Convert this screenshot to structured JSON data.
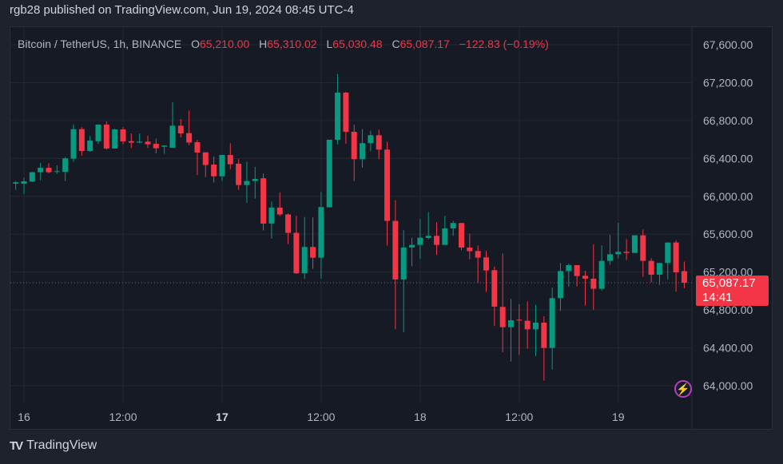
{
  "published": "rgb28 published on TradingView.com, Jun 19, 2024 08:45 UTC-4",
  "legend": {
    "symbol": "Bitcoin / TetherUS, 1h, BINANCE",
    "o_label": "O",
    "o": "65,210.00",
    "h_label": "H",
    "h": "65,310.02",
    "l_label": "L",
    "l": "65,030.48",
    "c_label": "C",
    "c": "65,087.17",
    "change": "−122.83 (−0.19%)"
  },
  "last_price": {
    "price": "65,087.17",
    "countdown": "14:41"
  },
  "logo_text": "TradingView",
  "icons": {
    "alert": "lightning-bolt-icon",
    "logo": "tradingview-logo-icon"
  },
  "colors": {
    "up": "#089981",
    "down": "#f23645",
    "background": "#161a25",
    "frame": "#1e222d",
    "grid": "#242833",
    "alert": "#b23fc8"
  },
  "chart_data": {
    "type": "candlestick",
    "interval": "1h",
    "first_candle": "2024-06-15 23:00",
    "last_close": 65087.17,
    "ylim": [
      63900,
      67750
    ],
    "y_ticks": [
      "67,600.00",
      "67,200.00",
      "66,800.00",
      "66,400.00",
      "66,000.00",
      "65,600.00",
      "65,200.00",
      "64,800.00",
      "64,400.00",
      "64,000.00"
    ],
    "y_tick_values": [
      67600,
      67200,
      66800,
      66400,
      66000,
      65600,
      65200,
      64800,
      64400,
      64000
    ],
    "x_ticks": [
      {
        "label": "16",
        "index": 1,
        "bold": false
      },
      {
        "label": "12:00",
        "index": 13,
        "bold": false
      },
      {
        "label": "17",
        "index": 25,
        "bold": true
      },
      {
        "label": "12:00",
        "index": 37,
        "bold": false
      },
      {
        "label": "18",
        "index": 49,
        "bold": false
      },
      {
        "label": "12:00",
        "index": 61,
        "bold": false
      },
      {
        "label": "19",
        "index": 73,
        "bold": false
      }
    ],
    "grid": true,
    "ohlc": [
      [
        66133,
        66161,
        66068,
        66147
      ],
      [
        66133,
        66197,
        66026,
        66158
      ],
      [
        66155,
        66257,
        66150,
        66254
      ],
      [
        66254,
        66352,
        66169,
        66301
      ],
      [
        66301,
        66349,
        66242,
        66254
      ],
      [
        66257,
        66327,
        66237,
        66265
      ],
      [
        66257,
        66414,
        66161,
        66400
      ],
      [
        66397,
        66759,
        66366,
        66709
      ],
      [
        66709,
        66731,
        66428,
        66478
      ],
      [
        66478,
        66636,
        66470,
        66588
      ],
      [
        66582,
        66757,
        66554,
        66757
      ],
      [
        66757,
        66790,
        66492,
        66504
      ],
      [
        66504,
        66714,
        66504,
        66706
      ],
      [
        66706,
        66731,
        66549,
        66580
      ],
      [
        66582,
        66664,
        66509,
        66566
      ],
      [
        66566,
        66664,
        66566,
        66577
      ],
      [
        66577,
        66641,
        66509,
        66549
      ],
      [
        66554,
        66610,
        66453,
        66507
      ],
      [
        66523,
        66540,
        66448,
        66535
      ],
      [
        66512,
        66990,
        66512,
        66745
      ],
      [
        66745,
        66816,
        66622,
        66664
      ],
      [
        66667,
        66905,
        66540,
        66568
      ],
      [
        66571,
        66596,
        66225,
        66462
      ],
      [
        66464,
        66464,
        66203,
        66330
      ],
      [
        66335,
        66419,
        66147,
        66211
      ],
      [
        66211,
        66436,
        66161,
        66436
      ],
      [
        66436,
        66560,
        66287,
        66338
      ],
      [
        66344,
        66391,
        66068,
        66119
      ],
      [
        66119,
        66363,
        65930,
        66161
      ],
      [
        66161,
        66310,
        65975,
        66183
      ],
      [
        66190,
        66240,
        65640,
        65712
      ],
      [
        65712,
        65945,
        65552,
        65881
      ],
      [
        65881,
        66041,
        65791,
        65808
      ],
      [
        65808,
        65819,
        65496,
        65614
      ],
      [
        65614,
        65796,
        65181,
        65187
      ],
      [
        65187,
        65782,
        65128,
        65465
      ],
      [
        65465,
        65777,
        65234,
        65352
      ],
      [
        65352,
        66046,
        65130,
        65886
      ],
      [
        65884,
        66597,
        65884,
        66597
      ],
      [
        66597,
        67291,
        66547,
        67094
      ],
      [
        67094,
        67103,
        66555,
        66681
      ],
      [
        66681,
        66755,
        66162,
        66392
      ],
      [
        66392,
        66710,
        66302,
        66561
      ],
      [
        66561,
        66693,
        66476,
        66645
      ],
      [
        66645,
        66704,
        66392,
        66493
      ],
      [
        66493,
        66577,
        65479,
        65740
      ],
      [
        65740,
        65959,
        64596,
        65122
      ],
      [
        65122,
        65642,
        64565,
        65459
      ],
      [
        65459,
        65563,
        65262,
        65487
      ],
      [
        65487,
        65760,
        65338,
        65563
      ],
      [
        65560,
        65833,
        65546,
        65583
      ],
      [
        65583,
        65726,
        65383,
        65487
      ],
      [
        65487,
        65793,
        65487,
        65661
      ],
      [
        65661,
        65740,
        65583,
        65718
      ],
      [
        65718,
        65718,
        65431,
        65459
      ],
      [
        65459,
        65605,
        65335,
        65420
      ],
      [
        65422,
        65482,
        65088,
        65352
      ],
      [
        65355,
        65425,
        64990,
        65217
      ],
      [
        65220,
        65257,
        64630,
        64835
      ],
      [
        64832,
        65397,
        64354,
        64618
      ],
      [
        64618,
        64916,
        64256,
        64691
      ],
      [
        64697,
        64860,
        64326,
        64689
      ],
      [
        64686,
        64891,
        64391,
        64596
      ],
      [
        64596,
        64854,
        64312,
        64666
      ],
      [
        64666,
        64733,
        64054,
        64399
      ],
      [
        64399,
        65037,
        64172,
        64925
      ],
      [
        64925,
        65296,
        64790,
        65211
      ],
      [
        65211,
        65290,
        65045,
        65273
      ],
      [
        65273,
        65273,
        65048,
        65158
      ],
      [
        65161,
        65214,
        64846,
        65130
      ],
      [
        65130,
        65492,
        64801,
        65023
      ],
      [
        65023,
        65481,
        65003,
        65318
      ],
      [
        65318,
        65593,
        65276,
        65388
      ],
      [
        65388,
        65720,
        65346,
        65414
      ],
      [
        65414,
        65548,
        65326,
        65402
      ],
      [
        65402,
        65588,
        65402,
        65588
      ],
      [
        65588,
        65650,
        65149,
        65318
      ],
      [
        65318,
        65346,
        65093,
        65172
      ],
      [
        65172,
        65296,
        65065,
        65296
      ],
      [
        65296,
        65512,
        65121,
        65512
      ],
      [
        65512,
        65534,
        64992,
        65197
      ],
      [
        65210,
        65310.02,
        65030.48,
        65087.17
      ]
    ]
  }
}
